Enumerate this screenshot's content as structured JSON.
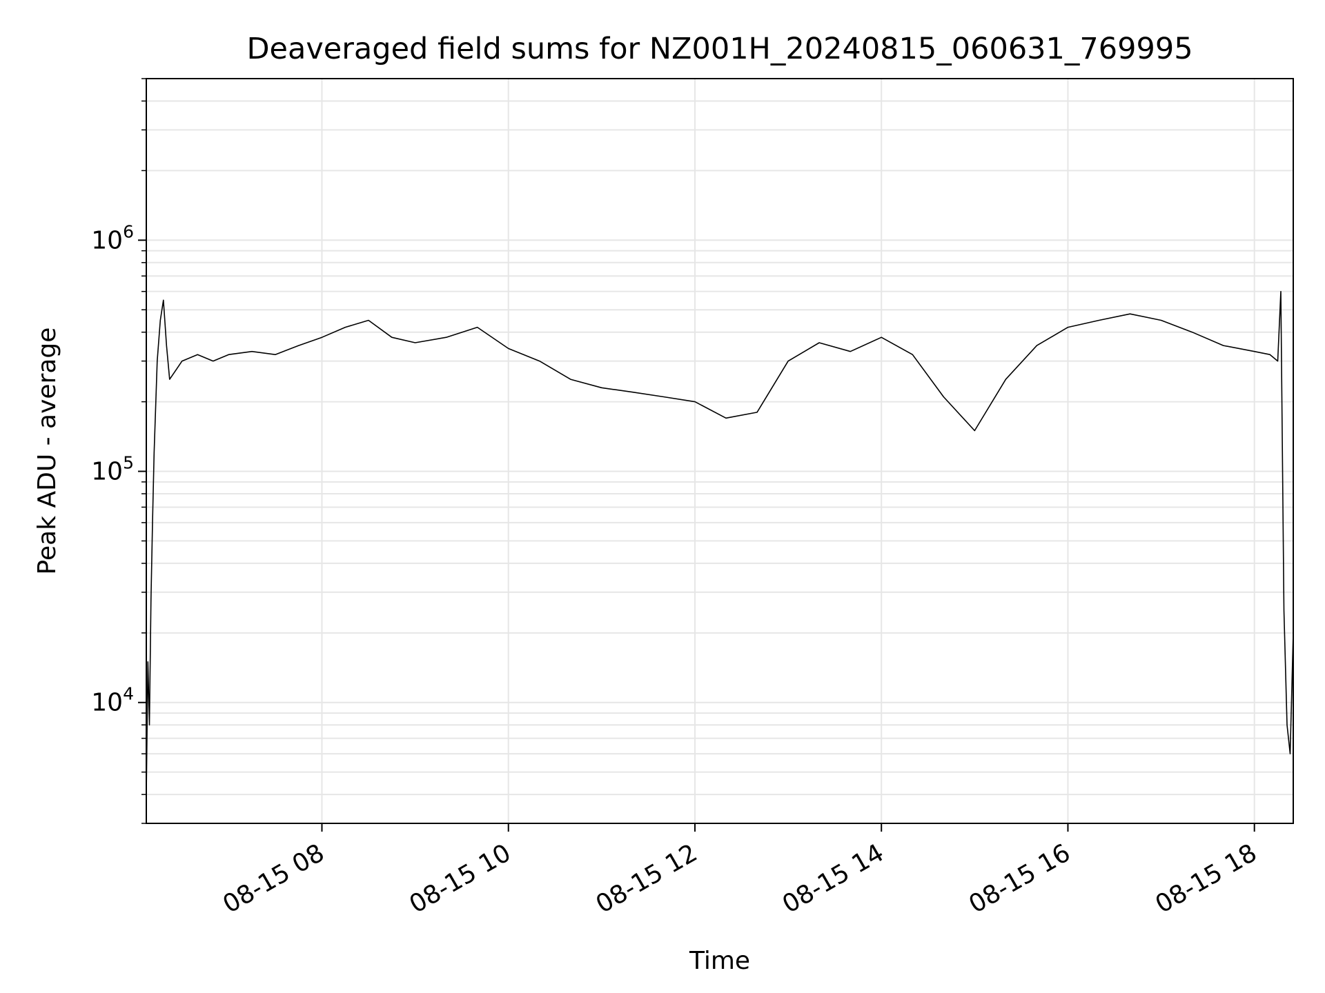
{
  "chart_data": {
    "type": "line",
    "title": "Deaveraged field sums for NZ001H_20240815_060631_769995",
    "xlabel": "Time",
    "ylabel": "Peak ADU - average",
    "xscale": "time",
    "yscale": "log",
    "grid": true,
    "line_color": "#000000",
    "grid_color": "#e6e6e6",
    "xlim": [
      "2024-08-15 06:07",
      "2024-08-15 18:25"
    ],
    "ylim": [
      3000,
      5000000
    ],
    "xticks": [
      {
        "value": "2024-08-15 08:00",
        "label": "08-15 08"
      },
      {
        "value": "2024-08-15 10:00",
        "label": "08-15 10"
      },
      {
        "value": "2024-08-15 12:00",
        "label": "08-15 12"
      },
      {
        "value": "2024-08-15 14:00",
        "label": "08-15 14"
      },
      {
        "value": "2024-08-15 16:00",
        "label": "08-15 16"
      },
      {
        "value": "2024-08-15 18:00",
        "label": "08-15 18"
      }
    ],
    "yticks": [
      {
        "value": 10000,
        "base": "10",
        "exp": "4"
      },
      {
        "value": 100000,
        "base": "10",
        "exp": "5"
      },
      {
        "value": 1000000,
        "base": "10",
        "exp": "6"
      }
    ],
    "series": [
      {
        "x": [
          "2024-08-15 06:07",
          "2024-08-15 06:08",
          "2024-08-15 06:09",
          "2024-08-15 06:10",
          "2024-08-15 06:11",
          "2024-08-15 06:12",
          "2024-08-15 06:14",
          "2024-08-15 06:16",
          "2024-08-15 06:18",
          "2024-08-15 06:20",
          "2024-08-15 06:22",
          "2024-08-15 06:30",
          "2024-08-15 06:40",
          "2024-08-15 06:50",
          "2024-08-15 07:00",
          "2024-08-15 07:15",
          "2024-08-15 07:30",
          "2024-08-15 07:45",
          "2024-08-15 08:00",
          "2024-08-15 08:15",
          "2024-08-15 08:30",
          "2024-08-15 08:45",
          "2024-08-15 09:00",
          "2024-08-15 09:20",
          "2024-08-15 09:40",
          "2024-08-15 10:00",
          "2024-08-15 10:20",
          "2024-08-15 10:40",
          "2024-08-15 11:00",
          "2024-08-15 11:20",
          "2024-08-15 11:40",
          "2024-08-15 12:00",
          "2024-08-15 12:20",
          "2024-08-15 12:40",
          "2024-08-15 13:00",
          "2024-08-15 13:20",
          "2024-08-15 13:40",
          "2024-08-15 14:00",
          "2024-08-15 14:20",
          "2024-08-15 14:40",
          "2024-08-15 15:00",
          "2024-08-15 15:20",
          "2024-08-15 15:40",
          "2024-08-15 16:00",
          "2024-08-15 16:20",
          "2024-08-15 16:40",
          "2024-08-15 17:00",
          "2024-08-15 17:20",
          "2024-08-15 17:40",
          "2024-08-15 18:00",
          "2024-08-15 18:10",
          "2024-08-15 18:15",
          "2024-08-15 18:17",
          "2024-08-15 18:19",
          "2024-08-15 18:21",
          "2024-08-15 18:23",
          "2024-08-15 18:25"
        ],
        "values": [
          4000,
          15000,
          8000,
          28000,
          60000,
          120000,
          300000,
          450000,
          550000,
          350000,
          250000,
          300000,
          320000,
          300000,
          320000,
          330000,
          320000,
          350000,
          380000,
          420000,
          450000,
          380000,
          360000,
          380000,
          420000,
          340000,
          300000,
          250000,
          230000,
          220000,
          210000,
          200000,
          170000,
          180000,
          300000,
          360000,
          330000,
          380000,
          320000,
          210000,
          150000,
          250000,
          350000,
          420000,
          450000,
          480000,
          450000,
          400000,
          350000,
          330000,
          320000,
          300000,
          600000,
          25000,
          8000,
          6000,
          20000
        ]
      }
    ]
  }
}
